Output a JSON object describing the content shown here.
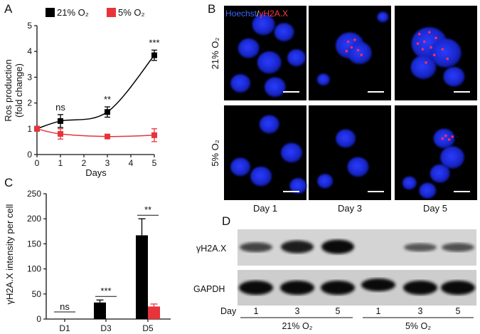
{
  "panels": {
    "A": {
      "letter": "A",
      "legend": [
        {
          "label": "21% O₂",
          "color": "#000000"
        },
        {
          "label": "5% O₂",
          "color": "#e8333a"
        }
      ],
      "ylabel_line1": "Ros production",
      "ylabel_line2": "(fold change)",
      "xlabel": "Days",
      "x_ticks": [
        "0",
        "1",
        "2",
        "3",
        "4",
        "5"
      ],
      "y_ticks": [
        "0",
        "1",
        "2",
        "3",
        "4",
        "5"
      ],
      "significance": [
        {
          "x": 1,
          "text": "ns"
        },
        {
          "x": 3,
          "text": "**"
        },
        {
          "x": 5,
          "text": "***"
        }
      ]
    },
    "B": {
      "letter": "B",
      "stain_hoechst": "Hoechst",
      "stain_sep": "/",
      "stain_h2ax": "γH2A.X",
      "row_labels": [
        "21% O₂",
        "5% O₂"
      ],
      "col_labels": [
        "Day 1",
        "Day 3",
        "Day 5"
      ]
    },
    "C": {
      "letter": "C",
      "ylabel": "γH2A.X intensity per cell",
      "x_ticks": [
        "D1",
        "D3",
        "D5"
      ],
      "y_ticks": [
        "0",
        "50",
        "100",
        "150",
        "200",
        "250"
      ],
      "significance": [
        {
          "group": 0,
          "text": "ns"
        },
        {
          "group": 1,
          "text": "***"
        },
        {
          "group": 2,
          "text": "**"
        }
      ]
    },
    "D": {
      "letter": "D",
      "row_labels": [
        "γH2A.X",
        "GAPDH"
      ],
      "day_label": "Day",
      "lane_days": [
        "1",
        "3",
        "5",
        "1",
        "3",
        "5"
      ],
      "groups": [
        "21% O₂",
        "5% O₂"
      ]
    }
  },
  "chart_data": [
    {
      "type": "line",
      "x": [
        0,
        1,
        3,
        5
      ],
      "series": [
        {
          "name": "21% O₂",
          "values": [
            1.0,
            1.3,
            1.65,
            3.85
          ],
          "errors": [
            0.05,
            0.25,
            0.2,
            0.2
          ],
          "color": "#000000"
        },
        {
          "name": "5% O₂",
          "values": [
            1.0,
            0.8,
            0.7,
            0.75
          ],
          "errors": [
            0.05,
            0.2,
            0.05,
            0.25
          ],
          "color": "#e8333a"
        }
      ],
      "xlabel": "Days",
      "ylabel": "Ros production (fold change)",
      "xlim": [
        0,
        5
      ],
      "ylim": [
        0,
        5
      ],
      "legend": "top-left"
    },
    {
      "type": "bar",
      "categories": [
        "D1",
        "D3",
        "D5"
      ],
      "series": [
        {
          "name": "21% O₂",
          "values": [
            0,
            33,
            167
          ],
          "errors": [
            0,
            5,
            33
          ],
          "color": "#000000"
        },
        {
          "name": "5% O₂",
          "values": [
            0,
            0,
            25
          ],
          "errors": [
            0,
            0,
            5
          ],
          "color": "#e8333a"
        }
      ],
      "ylabel": "γH2A.X intensity per cell",
      "ylim": [
        0,
        250
      ]
    }
  ]
}
